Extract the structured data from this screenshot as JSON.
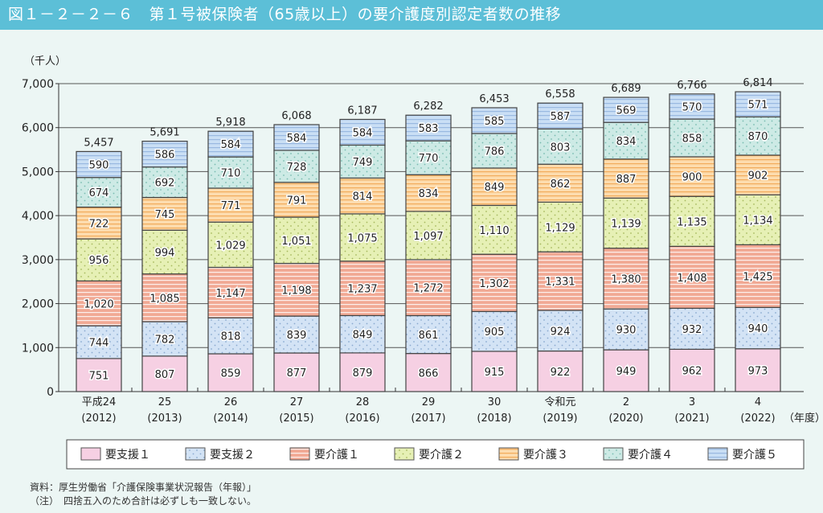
{
  "title": "図１－２－２－６　第１号被保険者（65歳以上）の要介護度別認定者数の推移",
  "chart_data": {
    "type": "bar",
    "stacked": true,
    "title": "図１－２－２－６　第１号被保険者（65歳以上）の要介護度別認定者数の推移",
    "ylabel": "（千人）",
    "xlabel": "（年度）",
    "ylim": [
      0,
      7000
    ],
    "yticks": [
      "0",
      "1,000",
      "2,000",
      "3,000",
      "4,000",
      "5,000",
      "6,000",
      "7,000"
    ],
    "grid": true,
    "legend_position": "bottom",
    "categories": [
      [
        "平成24",
        "(2012)"
      ],
      [
        "25",
        "(2013)"
      ],
      [
        "26",
        "(2014)"
      ],
      [
        "27",
        "(2015)"
      ],
      [
        "28",
        "(2016)"
      ],
      [
        "29",
        "(2017)"
      ],
      [
        "30",
        "(2018)"
      ],
      [
        "令和元",
        "(2019)"
      ],
      [
        "2",
        "(2020)"
      ],
      [
        "3",
        "(2021)"
      ],
      [
        "4",
        "(2022)"
      ]
    ],
    "totals": [
      "5,457",
      "5,691",
      "5,918",
      "6,068",
      "6,187",
      "6,282",
      "6,453",
      "6,558",
      "6,689",
      "6,766",
      "6,814"
    ],
    "series": [
      {
        "name": "要支援１",
        "color": "#f6d0e3",
        "pattern": "solid",
        "values": [
          751,
          807,
          859,
          877,
          879,
          866,
          915,
          922,
          949,
          962,
          973
        ]
      },
      {
        "name": "要支援２",
        "color": "#d3e3f5",
        "pattern": "dots",
        "values": [
          744,
          782,
          818,
          839,
          849,
          861,
          905,
          924,
          930,
          932,
          940
        ]
      },
      {
        "name": "要介護１",
        "color": "#f1a994",
        "pattern": "stripes-white",
        "values": [
          1020,
          1085,
          1147,
          1198,
          1237,
          1272,
          1302,
          1331,
          1380,
          1408,
          1425
        ]
      },
      {
        "name": "要介護２",
        "color": "#e6f0b5",
        "pattern": "dots",
        "values": [
          956,
          994,
          1029,
          1051,
          1075,
          1097,
          1110,
          1129,
          1139,
          1135,
          1134
        ]
      },
      {
        "name": "要介護３",
        "color": "#fddcae",
        "pattern": "stripes-orange",
        "values": [
          722,
          745,
          771,
          791,
          814,
          834,
          849,
          862,
          887,
          900,
          902
        ]
      },
      {
        "name": "要介護４",
        "color": "#cdeae5",
        "pattern": "dots",
        "values": [
          674,
          692,
          710,
          728,
          749,
          770,
          786,
          803,
          834,
          858,
          870
        ]
      },
      {
        "name": "要介護５",
        "color": "#cadff5",
        "pattern": "stripes-blue",
        "values": [
          590,
          586,
          584,
          584,
          584,
          583,
          585,
          587,
          569,
          570,
          571
        ]
      }
    ]
  },
  "notes": {
    "source": "資料：厚生労働省「介護保険事業状況報告（年報）」",
    "note": "（注）　四捨五入のため合計は必ずしも一致しない。"
  }
}
